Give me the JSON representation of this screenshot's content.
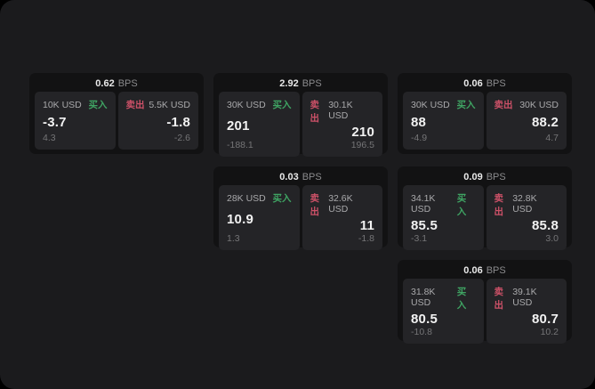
{
  "labels": {
    "bps_suffix": "BPS",
    "buy": "买入",
    "sell": "卖出"
  },
  "colors": {
    "buy": "#3fa463",
    "sell": "#cd5168",
    "panel_bg": "#1b1b1d",
    "card_bg": "#121213",
    "inner_bg": "#242427"
  },
  "cards": [
    {
      "bps": "0.62",
      "buy": {
        "size": "10K USD",
        "value": "-3.7",
        "sub": "4.3"
      },
      "sell": {
        "size": "5.5K USD",
        "value": "-1.8",
        "sub": "-2.6"
      }
    },
    {
      "bps": "2.92",
      "buy": {
        "size": "30K USD",
        "value": "201",
        "sub": "-188.1"
      },
      "sell": {
        "size": "30.1K USD",
        "value": "210",
        "sub": "196.5"
      }
    },
    {
      "bps": "0.06",
      "buy": {
        "size": "30K USD",
        "value": "88",
        "sub": "-4.9"
      },
      "sell": {
        "size": "30K USD",
        "value": "88.2",
        "sub": "4.7"
      }
    },
    {
      "bps": "0.03",
      "buy": {
        "size": "28K USD",
        "value": "10.9",
        "sub": "1.3"
      },
      "sell": {
        "size": "32.6K USD",
        "value": "11",
        "sub": "-1.8"
      }
    },
    {
      "bps": "0.09",
      "buy": {
        "size": "34.1K USD",
        "value": "85.5",
        "sub": "-3.1"
      },
      "sell": {
        "size": "32.8K USD",
        "value": "85.8",
        "sub": "3.0"
      }
    },
    {
      "bps": "0.06",
      "buy": {
        "size": "31.8K USD",
        "value": "80.5",
        "sub": "-10.8"
      },
      "sell": {
        "size": "39.1K USD",
        "value": "80.7",
        "sub": "10.2"
      }
    }
  ]
}
